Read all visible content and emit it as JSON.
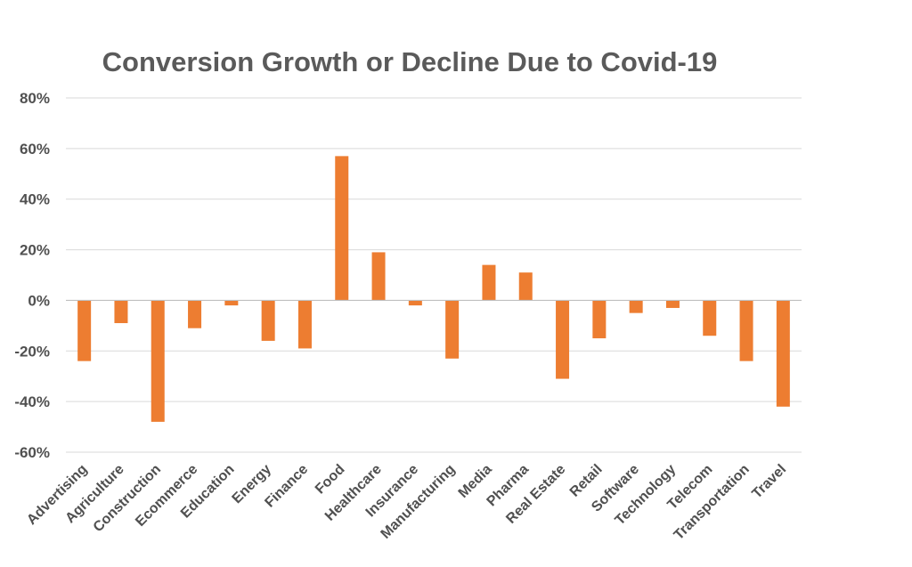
{
  "chart_data": {
    "type": "bar",
    "title": "Conversion Growth or Decline Due to Covid-19",
    "xlabel": "",
    "ylabel": "",
    "ylim": [
      -60,
      80
    ],
    "yticks": [
      80,
      60,
      40,
      20,
      0,
      -20,
      -40,
      -60
    ],
    "ytick_labels": [
      "80%",
      "60%",
      "40%",
      "20%",
      "0%",
      "-20%",
      "-40%",
      "-60%"
    ],
    "grid": true,
    "legend": "none",
    "bar_color": "#ed7d31",
    "categories": [
      "Advertising",
      "Agriculture",
      "Construction",
      "Ecommerce",
      "Education",
      "Energy",
      "Finance",
      "Food",
      "Healthcare",
      "Insurance",
      "Manufacturing",
      "Media",
      "Pharma",
      "Real Estate",
      "Retail",
      "Software",
      "Technology",
      "Telecom",
      "Transportation",
      "Travel"
    ],
    "values": [
      -24,
      -9,
      -48,
      -11,
      -2,
      -16,
      -19,
      57,
      19,
      -2,
      -23,
      14,
      11,
      -31,
      -15,
      -5,
      -3,
      -14,
      -24,
      -42
    ]
  }
}
